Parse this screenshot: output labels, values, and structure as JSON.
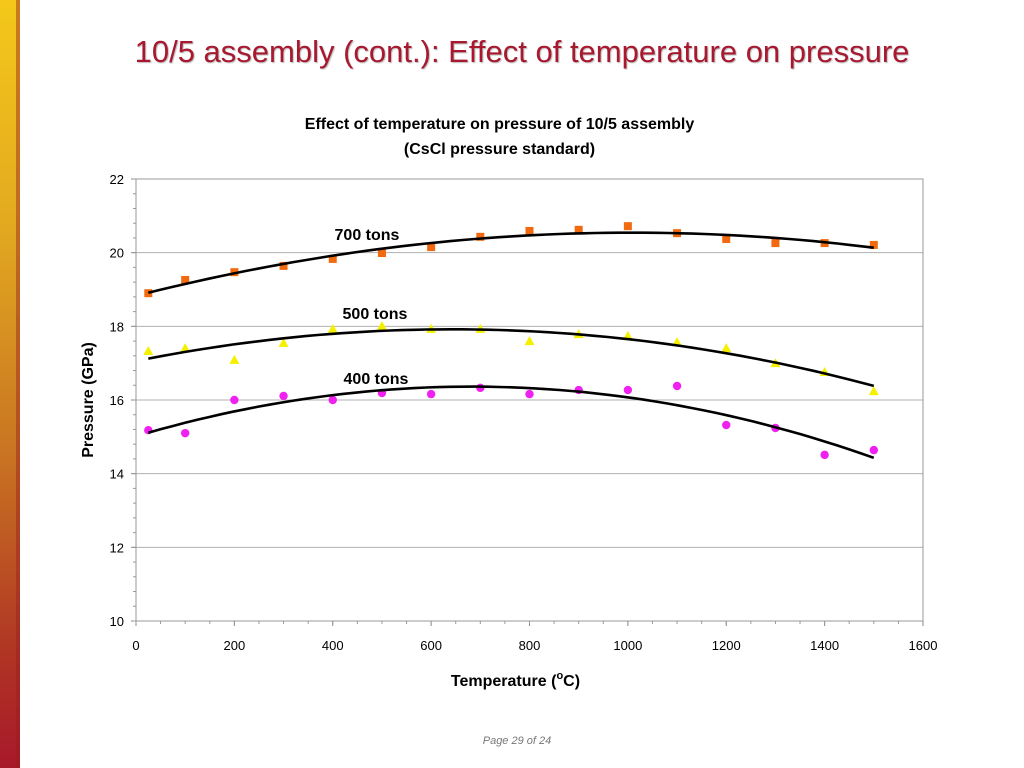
{
  "slide": {
    "title": "10/5 assembly (cont.): Effect of temperature on pressure",
    "footer": "Page 29 of 24"
  },
  "chart_data": {
    "type": "scatter",
    "title": "Effect of temperature on pressure of 10/5 assembly",
    "subtitle": "(CsCl pressure standard)",
    "xlabel": "Temperature (",
    "xlabel_sup": "o",
    "xlabel_end": "C)",
    "ylabel": "Pressure (GPa)",
    "xlim": [
      0,
      1600
    ],
    "ylim": [
      10,
      22
    ],
    "x_ticks": [
      "0",
      "200",
      "400",
      "600",
      "800",
      "1000",
      "1200",
      "1400",
      "1600"
    ],
    "y_ticks": [
      "10",
      "12",
      "14",
      "16",
      "18",
      "20",
      "22"
    ],
    "grid": "horizontal major",
    "legend": "none",
    "trendline": "polynomial order 2",
    "x": [
      25,
      100,
      200,
      300,
      400,
      500,
      600,
      700,
      800,
      900,
      1000,
      1100,
      1200,
      1300,
      1400,
      1500
    ],
    "series": [
      {
        "name": "700 tons",
        "marker": "square",
        "color": "#f26a10",
        "values": [
          18.9,
          19.26,
          19.47,
          19.64,
          19.83,
          19.99,
          20.15,
          20.43,
          20.59,
          20.62,
          20.72,
          20.53,
          20.37,
          20.26,
          20.26,
          20.21
        ]
      },
      {
        "name": "500 tons",
        "marker": "triangle",
        "color": "#f5f000",
        "values": [
          17.33,
          17.41,
          17.09,
          17.55,
          17.93,
          18.01,
          17.93,
          17.93,
          17.6,
          17.79,
          17.74,
          17.57,
          17.41,
          17.0,
          16.76,
          16.24
        ]
      },
      {
        "name": "400 tons",
        "marker": "circle",
        "color": "#f020f0",
        "values": [
          15.18,
          15.1,
          16.0,
          16.11,
          16.0,
          16.19,
          16.16,
          16.33,
          16.16,
          16.27,
          16.27,
          16.38,
          15.32,
          15.24,
          14.51,
          14.64
        ]
      }
    ]
  }
}
